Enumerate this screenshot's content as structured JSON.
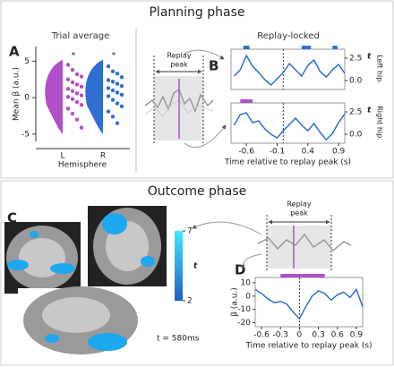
{
  "planning": {
    "title": "Planning phase",
    "panel_a": {
      "letter": "A",
      "title": "Trial average",
      "ylabel": "Mean β (a.u.)",
      "xlabel": "Hemisphere",
      "categories": [
        "L",
        "R"
      ],
      "colors": [
        "#b04fc9",
        "#2f6fcf"
      ],
      "markers": [
        "*",
        "*"
      ],
      "ylim": [
        -6,
        7
      ],
      "yticks": [
        -5,
        0,
        5
      ],
      "points": [
        [
          4.5,
          3.8,
          3.2,
          2.9,
          2.5,
          2.1,
          1.8,
          1.5,
          1.2,
          0.9,
          0.6,
          0.3,
          0.1,
          -0.2,
          -0.6,
          -1.0,
          -1.5,
          -2.2,
          -3.0,
          -4.1
        ],
        [
          4.3,
          3.6,
          3.3,
          2.8,
          2.4,
          2.2,
          1.9,
          1.6,
          1.3,
          1.0,
          0.7,
          0.4,
          0.2,
          -0.3,
          -0.8,
          -1.2,
          -1.9,
          -2.6,
          -3.5
        ]
      ]
    },
    "schematic": {
      "label": [
        "Replay",
        "peak"
      ]
    },
    "panel_b": {
      "letter": "B",
      "title": "Replay-locked",
      "xlabel": "Time relative to replay peak (s)",
      "ylabel": "t",
      "xlim": [
        -0.85,
        1.0
      ],
      "xticks": [
        -0.6,
        -0.1,
        0.4,
        0.9
      ],
      "ylim": [
        -1,
        3.5
      ],
      "yticks": [
        {
          "value": 0,
          "label": "0.0"
        },
        {
          "value": 2.5,
          "label": "2.5"
        }
      ],
      "x": [
        -0.8,
        -0.7,
        -0.6,
        -0.5,
        -0.4,
        -0.3,
        -0.2,
        -0.1,
        0.0,
        0.1,
        0.2,
        0.3,
        0.4,
        0.5,
        0.6,
        0.7,
        0.8,
        0.9,
        1.0
      ],
      "series": [
        {
          "name": "Left hip.",
          "color": "#2f6fcf",
          "cluster_color": "#2f6fcf",
          "values": [
            0.5,
            1.2,
            2.8,
            1.6,
            0.9,
            0.1,
            -0.5,
            0.2,
            0.9,
            1.9,
            1.2,
            0.5,
            1.7,
            2.3,
            1.0,
            0.4,
            1.2,
            1.8,
            0.8
          ],
          "clusters": [
            [
              -0.65,
              -0.55
            ],
            [
              0.3,
              0.45
            ],
            [
              0.8,
              0.88
            ]
          ]
        },
        {
          "name": "Right hip.",
          "color": "#2f6fcf",
          "cluster_color": "#b04fc9",
          "values": [
            1.0,
            2.2,
            2.4,
            1.3,
            1.5,
            0.6,
            0.0,
            -0.4,
            0.4,
            1.1,
            1.8,
            1.0,
            0.4,
            1.2,
            0.2,
            -0.6,
            0.1,
            1.3,
            2.3
          ],
          "clusters": [
            [
              -0.7,
              -0.5
            ]
          ]
        }
      ]
    }
  },
  "outcome": {
    "title": "Outcome phase",
    "panel_c": {
      "letter": "C",
      "colorbar": {
        "label": "t",
        "lim": [
          2,
          7
        ],
        "ticks": [
          7,
          2
        ]
      },
      "annotation": "t = 580ms"
    },
    "schematic": {
      "label": [
        "Replay",
        "peak"
      ]
    },
    "panel_d": {
      "letter": "D",
      "xlabel": "Time relative to replay peak (s)",
      "ylabel": "β (a.u.)",
      "xlim": [
        -0.7,
        1.0
      ],
      "xticks": [
        -0.6,
        -0.3,
        0,
        0.3,
        0.6,
        0.9
      ],
      "ylim": [
        -23,
        14
      ],
      "yticks": [
        -20,
        -10,
        0,
        10
      ],
      "x": [
        -0.7,
        -0.6,
        -0.5,
        -0.4,
        -0.3,
        -0.2,
        -0.1,
        0.0,
        0.1,
        0.2,
        0.3,
        0.4,
        0.5,
        0.6,
        0.7,
        0.8,
        0.9,
        1.0
      ],
      "series": [
        {
          "color": "#2f6fcf",
          "cluster_color": "#b04fc9",
          "values": [
            5,
            2,
            -2,
            -5,
            -4,
            -6,
            -12,
            -17,
            -8,
            0,
            4,
            2,
            -3,
            1,
            3,
            -1,
            5,
            -8
          ],
          "clusters": [
            [
              -0.3,
              0.4
            ]
          ]
        }
      ]
    }
  }
}
